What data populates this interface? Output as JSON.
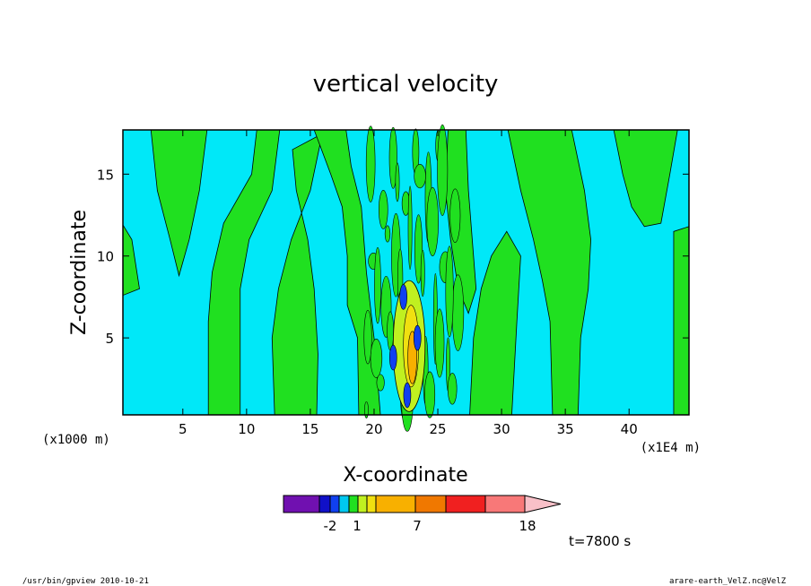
{
  "chart_data": {
    "type": "heatmap",
    "title": "vertical velocity",
    "xlabel": "X-coordinate",
    "ylabel": "Z-coordinate",
    "x_unit_left": "(x1000 m)",
    "x_unit_right": "(x1E4 m)",
    "xlim": [
      0.3,
      44.7
    ],
    "ylim": [
      0.3,
      17.7
    ],
    "x_ticks": [
      "5",
      "10",
      "15",
      "20",
      "25",
      "30",
      "35",
      "40"
    ],
    "x_tick_values": [
      5,
      10,
      15,
      20,
      25,
      30,
      35,
      40
    ],
    "y_ticks": [
      "5",
      "10",
      "15"
    ],
    "y_tick_values": [
      5,
      10,
      15
    ],
    "time_label": "t=7800 s",
    "colorbar": {
      "colors": [
        "#7010b0",
        "#1010c8",
        "#1040f0",
        "#00c8f0",
        "#20e020",
        "#c0f020",
        "#f0e010",
        "#f8b000",
        "#f07800",
        "#f02020",
        "#f87878",
        "#f8c0c8"
      ],
      "labels": [
        "-2",
        "1",
        "7",
        "18"
      ],
      "background_color": "#00e8f8",
      "positive_color": "#20e020"
    },
    "core": {
      "x_range": [
        21.5,
        24.0
      ],
      "z_range": [
        0.5,
        8.5
      ]
    }
  },
  "footer": {
    "left": "/usr/bin/gpview   2010-10-21",
    "right": "arare-earth_VelZ.nc@VelZ"
  }
}
